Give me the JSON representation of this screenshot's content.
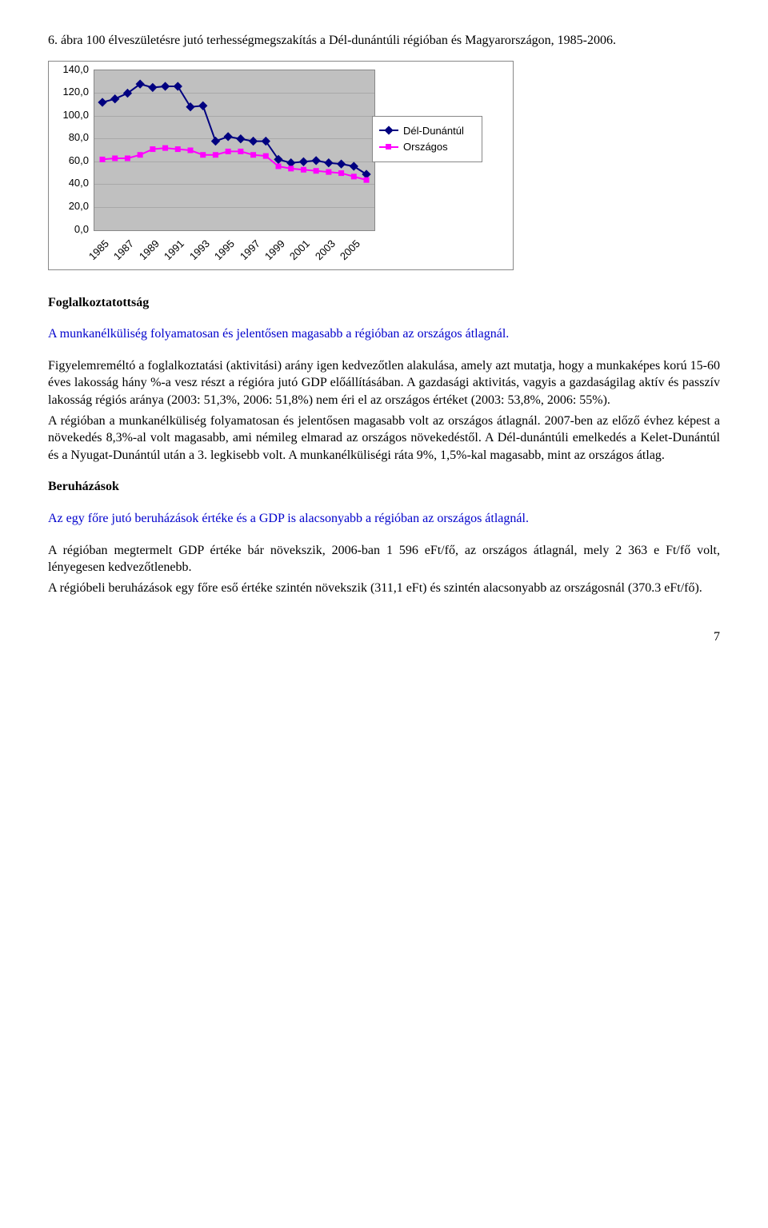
{
  "title": "6. ábra 100 élveszületésre jutó terhességmegszakítás a Dél-dunántúli régióban és Magyarországon, 1985-2006.",
  "chart": {
    "type": "line",
    "background_color": "#c0c0c0",
    "grid_color": "#a8a8a8",
    "border_color": "#888888",
    "ylim": [
      0,
      140
    ],
    "ytick_step": 20,
    "y_ticks": [
      "0,0",
      "20,0",
      "40,0",
      "60,0",
      "80,0",
      "100,0",
      "120,0",
      "140,0"
    ],
    "x_labels": [
      "1985",
      "1987",
      "1989",
      "1991",
      "1993",
      "1995",
      "1997",
      "1999",
      "2001",
      "2003",
      "2005"
    ],
    "years": [
      1985,
      1986,
      1987,
      1988,
      1989,
      1990,
      1991,
      1992,
      1993,
      1994,
      1995,
      1996,
      1997,
      1998,
      1999,
      2000,
      2001,
      2002,
      2003,
      2004,
      2005,
      2006
    ],
    "series": [
      {
        "name": "Dél-Dunántúl",
        "label": "Dél-Dunántúl",
        "color": "#000080",
        "marker": "diamond",
        "line_width": 2,
        "values": [
          112,
          115,
          120,
          128,
          125,
          126,
          126,
          108,
          109,
          78,
          82,
          80,
          78,
          78,
          62,
          59,
          60,
          61,
          59,
          58,
          56,
          49
        ]
      },
      {
        "name": "Országos",
        "label": "Országos",
        "color": "#ff00ff",
        "marker": "square",
        "line_width": 2,
        "values": [
          62,
          63,
          63,
          66,
          71,
          72,
          71,
          70,
          66,
          66,
          69,
          69,
          66,
          65,
          56,
          54,
          53,
          52,
          51,
          50,
          47,
          44
        ]
      }
    ],
    "legend_position": "right",
    "label_fontsize": 13
  },
  "sections": {
    "foglalkoztatottsag_title": "Foglalkoztatottság",
    "foglalkoztatottsag_highlight": "A munkanélküliség folyamatosan és jelentősen magasabb a régióban az országos átlagnál.",
    "foglalkoztatottsag_body": "Figyelemreméltó a foglalkoztatási (aktivitási) arány igen kedvezőtlen alakulása, amely azt mutatja, hogy a munkaképes korú 15-60 éves lakosság hány %-a vesz részt a régióra jutó GDP előállításában. A gazdasági aktivitás, vagyis a gazdaságilag aktív és passzív lakosság régiós aránya (2003: 51,3%, 2006: 51,8%) nem éri el az országos értéket (2003: 53,8%, 2006: 55%).",
    "foglalkoztatottsag_body2": "A régióban a munkanélküliség folyamatosan és jelentősen magasabb volt az országos átlagnál. 2007-ben az előző évhez képest a növekedés 8,3%-al volt magasabb, ami némileg elmarad az országos növekedéstől. A Dél-dunántúli emelkedés a Kelet-Dunántúl és a Nyugat-Dunántúl után a 3. legkisebb volt. A munkanélküliségi ráta 9%, 1,5%-kal magasabb, mint az országos átlag.",
    "beruhazasok_title": "Beruházások",
    "beruhazasok_highlight": "Az egy főre jutó beruházások értéke és a GDP is alacsonyabb a régióban az országos átlagnál.",
    "beruhazasok_body1": "A régióban megtermelt GDP értéke bár növekszik, 2006-ban 1 596 eFt/fő, az országos átlagnál, mely 2 363 e Ft/fő volt, lényegesen kedvezőtlenebb.",
    "beruhazasok_body2": "A régióbeli beruházások egy főre eső értéke szintén növekszik (311,1 eFt) és szintén alacsonyabb az országosnál (370.3 eFt/fő)."
  },
  "page_number": "7"
}
